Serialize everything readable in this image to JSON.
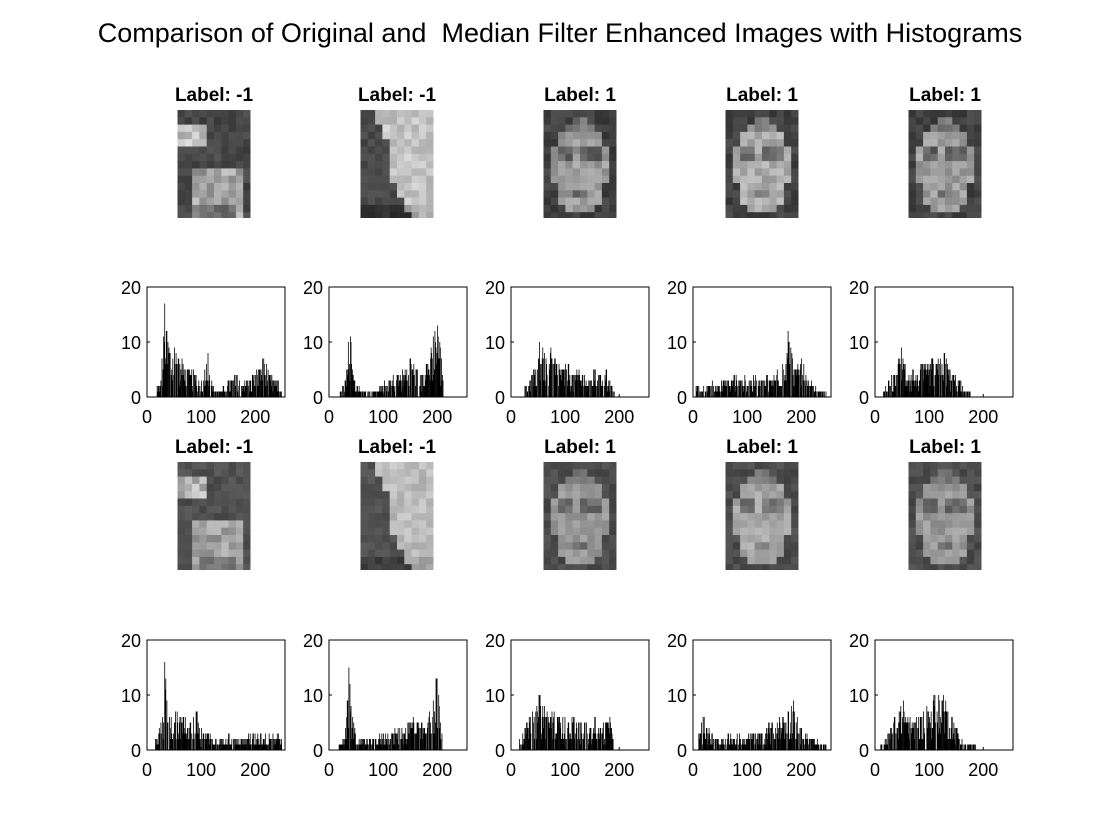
{
  "title": "Comparison of Original and  Median Filter Enhanced Images with Histograms",
  "colors": {
    "bars": "#000000",
    "axes": "#000000",
    "background": "#ffffff"
  },
  "columns": [
    {
      "label": "Label: -1",
      "image": "non-face hair patch"
    },
    {
      "label": "Label: -1",
      "image": "non-face gray texture"
    },
    {
      "label": "Label: 1",
      "image": "face"
    },
    {
      "label": "Label: 1",
      "image": "face"
    },
    {
      "label": "Label: 1",
      "image": "face"
    }
  ],
  "chart_data": [
    {
      "type": "bar",
      "row": "original",
      "subplots": [
        {
          "label": "Label: -1",
          "xlim": [
            0,
            255
          ],
          "ylim": [
            0,
            20
          ],
          "xticks": [
            0,
            100,
            200
          ],
          "yticks": [
            0,
            10,
            20
          ],
          "peaks": [
            [
              18,
              2
            ],
            [
              25,
              3
            ],
            [
              32,
              17
            ],
            [
              36,
              12
            ],
            [
              42,
              8
            ],
            [
              50,
              9
            ],
            [
              58,
              7
            ],
            [
              66,
              6
            ],
            [
              75,
              5
            ],
            [
              88,
              4
            ],
            [
              100,
              3
            ],
            [
              112,
              8
            ],
            [
              120,
              2
            ],
            [
              135,
              1
            ],
            [
              150,
              3
            ],
            [
              165,
              4
            ],
            [
              180,
              3
            ],
            [
              195,
              4
            ],
            [
              205,
              5
            ],
            [
              215,
              7
            ],
            [
              225,
              4
            ],
            [
              240,
              3
            ],
            [
              248,
              1
            ]
          ]
        },
        {
          "label": "Label: -1",
          "xlim": [
            0,
            255
          ],
          "ylim": [
            0,
            20
          ],
          "xticks": [
            0,
            100,
            200
          ],
          "yticks": [
            0,
            10,
            20
          ],
          "peaks": [
            [
              20,
              1
            ],
            [
              30,
              3
            ],
            [
              35,
              10
            ],
            [
              39,
              11
            ],
            [
              44,
              4
            ],
            [
              52,
              2
            ],
            [
              65,
              1
            ],
            [
              80,
              1
            ],
            [
              95,
              2
            ],
            [
              110,
              3
            ],
            [
              125,
              4
            ],
            [
              140,
              5
            ],
            [
              150,
              7
            ],
            [
              160,
              5
            ],
            [
              170,
              4
            ],
            [
              180,
              6
            ],
            [
              188,
              9
            ],
            [
              195,
              12
            ],
            [
              200,
              13
            ],
            [
              205,
              9
            ],
            [
              210,
              3
            ]
          ]
        },
        {
          "label": "Label: 1",
          "xlim": [
            0,
            255
          ],
          "ylim": [
            0,
            20
          ],
          "xticks": [
            0,
            100,
            200
          ],
          "yticks": [
            0,
            10,
            20
          ],
          "peaks": [
            [
              25,
              2
            ],
            [
              35,
              3
            ],
            [
              45,
              5
            ],
            [
              52,
              10
            ],
            [
              58,
              9
            ],
            [
              65,
              6
            ],
            [
              72,
              8
            ],
            [
              80,
              7
            ],
            [
              88,
              6
            ],
            [
              95,
              5
            ],
            [
              105,
              6
            ],
            [
              115,
              4
            ],
            [
              125,
              5
            ],
            [
              135,
              4
            ],
            [
              145,
              3
            ],
            [
              155,
              5
            ],
            [
              165,
              4
            ],
            [
              175,
              5
            ],
            [
              182,
              3
            ],
            [
              190,
              1
            ]
          ]
        },
        {
          "label": "Label: 1",
          "xlim": [
            0,
            255
          ],
          "ylim": [
            0,
            20
          ],
          "xticks": [
            0,
            100,
            200
          ],
          "yticks": [
            0,
            10,
            20
          ],
          "peaks": [
            [
              5,
              2
            ],
            [
              15,
              1
            ],
            [
              25,
              2
            ],
            [
              35,
              3
            ],
            [
              45,
              2
            ],
            [
              55,
              3
            ],
            [
              65,
              3
            ],
            [
              75,
              4
            ],
            [
              85,
              3
            ],
            [
              95,
              4
            ],
            [
              105,
              3
            ],
            [
              115,
              4
            ],
            [
              125,
              3
            ],
            [
              135,
              4
            ],
            [
              145,
              3
            ],
            [
              155,
              5
            ],
            [
              165,
              6
            ],
            [
              175,
              12
            ],
            [
              182,
              8
            ],
            [
              190,
              5
            ],
            [
              200,
              7
            ],
            [
              210,
              3
            ],
            [
              222,
              2
            ],
            [
              235,
              1
            ],
            [
              245,
              1
            ]
          ]
        },
        {
          "label": "Label: 1",
          "xlim": [
            0,
            255
          ],
          "ylim": [
            0,
            20
          ],
          "xticks": [
            0,
            100,
            200
          ],
          "yticks": [
            0,
            10,
            20
          ],
          "peaks": [
            [
              15,
              1
            ],
            [
              25,
              3
            ],
            [
              35,
              4
            ],
            [
              42,
              6
            ],
            [
              48,
              9
            ],
            [
              55,
              6
            ],
            [
              62,
              4
            ],
            [
              70,
              5
            ],
            [
              78,
              4
            ],
            [
              88,
              6
            ],
            [
              95,
              5
            ],
            [
              105,
              7
            ],
            [
              112,
              6
            ],
            [
              120,
              7
            ],
            [
              128,
              8
            ],
            [
              136,
              5
            ],
            [
              145,
              4
            ],
            [
              155,
              3
            ],
            [
              165,
              1
            ],
            [
              175,
              1
            ]
          ]
        }
      ]
    },
    {
      "type": "bar",
      "row": "median-filtered",
      "subplots": [
        {
          "label": "Label: -1",
          "xlim": [
            0,
            255
          ],
          "ylim": [
            0,
            20
          ],
          "xticks": [
            0,
            100,
            200
          ],
          "yticks": [
            0,
            10,
            20
          ],
          "peaks": [
            [
              15,
              2
            ],
            [
              22,
              4
            ],
            [
              28,
              6
            ],
            [
              32,
              16
            ],
            [
              36,
              9
            ],
            [
              44,
              6
            ],
            [
              52,
              7
            ],
            [
              60,
              6
            ],
            [
              70,
              6
            ],
            [
              80,
              5
            ],
            [
              90,
              7
            ],
            [
              100,
              4
            ],
            [
              110,
              3
            ],
            [
              120,
              2
            ],
            [
              135,
              2
            ],
            [
              150,
              3
            ],
            [
              165,
              2
            ],
            [
              180,
              2
            ],
            [
              195,
              3
            ],
            [
              210,
              3
            ],
            [
              225,
              3
            ],
            [
              240,
              3
            ],
            [
              248,
              2
            ]
          ]
        },
        {
          "label": "Label: -1",
          "xlim": [
            0,
            255
          ],
          "ylim": [
            0,
            20
          ],
          "xticks": [
            0,
            100,
            200
          ],
          "yticks": [
            0,
            10,
            20
          ],
          "peaks": [
            [
              18,
              1
            ],
            [
              25,
              2
            ],
            [
              32,
              6
            ],
            [
              36,
              15
            ],
            [
              40,
              8
            ],
            [
              48,
              3
            ],
            [
              58,
              2
            ],
            [
              70,
              2
            ],
            [
              85,
              2
            ],
            [
              100,
              3
            ],
            [
              115,
              3
            ],
            [
              130,
              4
            ],
            [
              145,
              5
            ],
            [
              155,
              6
            ],
            [
              165,
              5
            ],
            [
              175,
              4
            ],
            [
              185,
              7
            ],
            [
              192,
              9
            ],
            [
              198,
              13
            ],
            [
              203,
              8
            ],
            [
              208,
              3
            ]
          ]
        },
        {
          "label": "Label: 1",
          "xlim": [
            0,
            255
          ],
          "ylim": [
            0,
            20
          ],
          "xticks": [
            0,
            100,
            200
          ],
          "yticks": [
            0,
            10,
            20
          ],
          "peaks": [
            [
              15,
              2
            ],
            [
              25,
              4
            ],
            [
              35,
              6
            ],
            [
              45,
              7
            ],
            [
              52,
              10
            ],
            [
              58,
              8
            ],
            [
              66,
              7
            ],
            [
              75,
              7
            ],
            [
              85,
              6
            ],
            [
              95,
              6
            ],
            [
              105,
              5
            ],
            [
              115,
              6
            ],
            [
              125,
              5
            ],
            [
              135,
              5
            ],
            [
              145,
              4
            ],
            [
              155,
              6
            ],
            [
              165,
              4
            ],
            [
              175,
              5
            ],
            [
              182,
              6
            ],
            [
              188,
              2
            ]
          ]
        },
        {
          "label": "Label: 1",
          "xlim": [
            0,
            255
          ],
          "ylim": [
            0,
            20
          ],
          "xticks": [
            0,
            100,
            200
          ],
          "yticks": [
            0,
            10,
            20
          ],
          "peaks": [
            [
              10,
              3
            ],
            [
              18,
              6
            ],
            [
              25,
              4
            ],
            [
              35,
              3
            ],
            [
              45,
              2
            ],
            [
              55,
              2
            ],
            [
              65,
              3
            ],
            [
              75,
              2
            ],
            [
              85,
              3
            ],
            [
              95,
              2
            ],
            [
              105,
              3
            ],
            [
              115,
              3
            ],
            [
              125,
              3
            ],
            [
              135,
              4
            ],
            [
              145,
              5
            ],
            [
              155,
              5
            ],
            [
              165,
              6
            ],
            [
              175,
              7
            ],
            [
              185,
              9
            ],
            [
              192,
              6
            ],
            [
              200,
              4
            ],
            [
              210,
              3
            ],
            [
              222,
              2
            ],
            [
              235,
              1
            ],
            [
              245,
              1
            ]
          ]
        },
        {
          "label": "Label: 1",
          "xlim": [
            0,
            255
          ],
          "ylim": [
            0,
            20
          ],
          "xticks": [
            0,
            100,
            200
          ],
          "yticks": [
            0,
            10,
            20
          ],
          "peaks": [
            [
              10,
              1
            ],
            [
              18,
              2
            ],
            [
              28,
              4
            ],
            [
              36,
              6
            ],
            [
              44,
              7
            ],
            [
              52,
              9
            ],
            [
              60,
              6
            ],
            [
              68,
              5
            ],
            [
              76,
              6
            ],
            [
              86,
              6
            ],
            [
              95,
              8
            ],
            [
              103,
              7
            ],
            [
              110,
              10
            ],
            [
              118,
              9
            ],
            [
              126,
              10
            ],
            [
              134,
              7
            ],
            [
              142,
              6
            ],
            [
              150,
              4
            ],
            [
              160,
              2
            ],
            [
              170,
              1
            ],
            [
              185,
              1
            ]
          ]
        }
      ]
    }
  ]
}
